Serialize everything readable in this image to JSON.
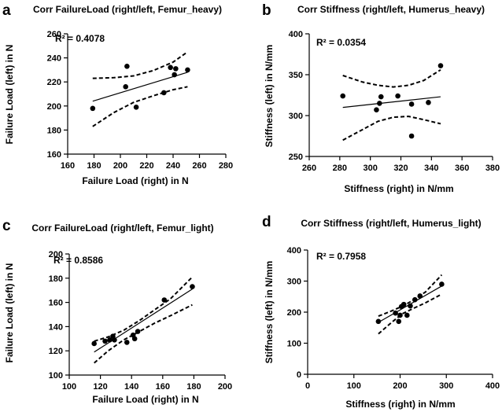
{
  "chart_data": [
    {
      "type": "scatter",
      "letter": "a",
      "title": "Corr FailureLoad (right/left, Femur_heavy)",
      "xlabel": "Failure Load (right) in N",
      "ylabel": "Failure Load (left) in N",
      "r2_label": "R² = 0.4078",
      "xlim": [
        160,
        280
      ],
      "ylim": [
        160,
        260
      ],
      "xticks": [
        160,
        180,
        200,
        220,
        240,
        260,
        280
      ],
      "yticks": [
        160,
        180,
        200,
        220,
        240,
        260
      ],
      "points": [
        [
          179,
          198
        ],
        [
          204,
          216
        ],
        [
          205,
          233
        ],
        [
          212,
          199
        ],
        [
          233,
          211
        ],
        [
          238,
          232
        ],
        [
          241,
          226
        ],
        [
          242,
          231
        ],
        [
          251,
          230
        ]
      ],
      "fit_line": [
        [
          179,
          204
        ],
        [
          251,
          228
        ]
      ],
      "ci_upper": [
        [
          179,
          223
        ],
        [
          195,
          223.5
        ],
        [
          210,
          225
        ],
        [
          225,
          229.5
        ],
        [
          240,
          236.5
        ],
        [
          251,
          245
        ]
      ],
      "ci_lower": [
        [
          179,
          183
        ],
        [
          195,
          194.5
        ],
        [
          210,
          203
        ],
        [
          225,
          208.5
        ],
        [
          240,
          213.5
        ],
        [
          251,
          216
        ]
      ]
    },
    {
      "type": "scatter",
      "letter": "b",
      "title": "Corr Stiffness (right/left, Humerus_heavy)",
      "xlabel": "Stiffness (right) in N/mm",
      "ylabel": "Stiffness (left) in N/mm",
      "r2_label": "R² = 0.0354",
      "xlim": [
        260,
        380
      ],
      "ylim": [
        250,
        400
      ],
      "xticks": [
        260,
        280,
        300,
        320,
        340,
        360,
        380
      ],
      "yticks": [
        250,
        300,
        350,
        400
      ],
      "points": [
        [
          282,
          324
        ],
        [
          304,
          307
        ],
        [
          306,
          315
        ],
        [
          307,
          323
        ],
        [
          318,
          324
        ],
        [
          327,
          314
        ],
        [
          327,
          275
        ],
        [
          338,
          316
        ],
        [
          346,
          361
        ]
      ],
      "fit_line": [
        [
          282,
          310
        ],
        [
          346,
          323
        ]
      ],
      "ci_upper": [
        [
          282,
          349
        ],
        [
          295,
          341
        ],
        [
          305,
          337
        ],
        [
          315,
          335
        ],
        [
          325,
          337
        ],
        [
          335,
          343
        ],
        [
          346,
          356
        ]
      ],
      "ci_lower": [
        [
          282,
          270
        ],
        [
          295,
          283
        ],
        [
          305,
          293
        ],
        [
          315,
          298
        ],
        [
          325,
          299
        ],
        [
          335,
          295
        ],
        [
          346,
          290
        ]
      ]
    },
    {
      "type": "scatter",
      "letter": "c",
      "title": "Corr FailureLoad (right/left, Femur_light)",
      "xlabel": "Failure Load (right) in N",
      "ylabel": "Failure Load (left) in N",
      "r2_label": "R² = 0.8586",
      "xlim": [
        100,
        200
      ],
      "ylim": [
        100,
        200
      ],
      "xticks": [
        100,
        120,
        140,
        160,
        180,
        200
      ],
      "yticks": [
        100,
        120,
        140,
        160,
        180,
        200
      ],
      "points": [
        [
          116,
          126
        ],
        [
          123,
          128
        ],
        [
          126,
          129
        ],
        [
          128,
          132
        ],
        [
          129,
          129
        ],
        [
          137,
          127
        ],
        [
          141,
          133
        ],
        [
          142,
          130
        ],
        [
          144,
          136
        ],
        [
          161,
          162
        ],
        [
          179,
          173
        ]
      ],
      "fit_line": [
        [
          116,
          119
        ],
        [
          179,
          171
        ]
      ],
      "ci_upper": [
        [
          116,
          128
        ],
        [
          125,
          131.5
        ],
        [
          135,
          137
        ],
        [
          145,
          145
        ],
        [
          155,
          154
        ],
        [
          165,
          163
        ],
        [
          179,
          181
        ]
      ],
      "ci_lower": [
        [
          116,
          110
        ],
        [
          125,
          120
        ],
        [
          135,
          129
        ],
        [
          145,
          136
        ],
        [
          155,
          143
        ],
        [
          165,
          149
        ],
        [
          179,
          158
        ]
      ]
    },
    {
      "type": "scatter",
      "letter": "d",
      "title": "Corr Stiffness (right/left, Humerus_light)",
      "xlabel": "Stiffness (right) in N/mm",
      "ylabel": "Stiffness (left) in N/mm",
      "r2_label": "R² = 0.7958",
      "xlim": [
        0,
        400
      ],
      "ylim": [
        0,
        400
      ],
      "xticks": [
        0,
        100,
        200,
        300,
        400
      ],
      "yticks": [
        0,
        100,
        200,
        300,
        400
      ],
      "points": [
        [
          153,
          170
        ],
        [
          190,
          197
        ],
        [
          197,
          170
        ],
        [
          200,
          190
        ],
        [
          203,
          218
        ],
        [
          208,
          225
        ],
        [
          215,
          190
        ],
        [
          222,
          220
        ],
        [
          232,
          240
        ],
        [
          243,
          252
        ],
        [
          290,
          290
        ]
      ],
      "fit_line": [
        [
          153,
          167
        ],
        [
          290,
          284
        ]
      ],
      "ci_upper": [
        [
          153,
          187
        ],
        [
          180,
          203
        ],
        [
          205,
          219
        ],
        [
          230,
          240
        ],
        [
          255,
          265
        ],
        [
          290,
          320
        ]
      ],
      "ci_lower": [
        [
          153,
          130
        ],
        [
          180,
          165
        ],
        [
          205,
          195
        ],
        [
          230,
          213
        ],
        [
          255,
          230
        ],
        [
          290,
          258
        ]
      ]
    }
  ]
}
